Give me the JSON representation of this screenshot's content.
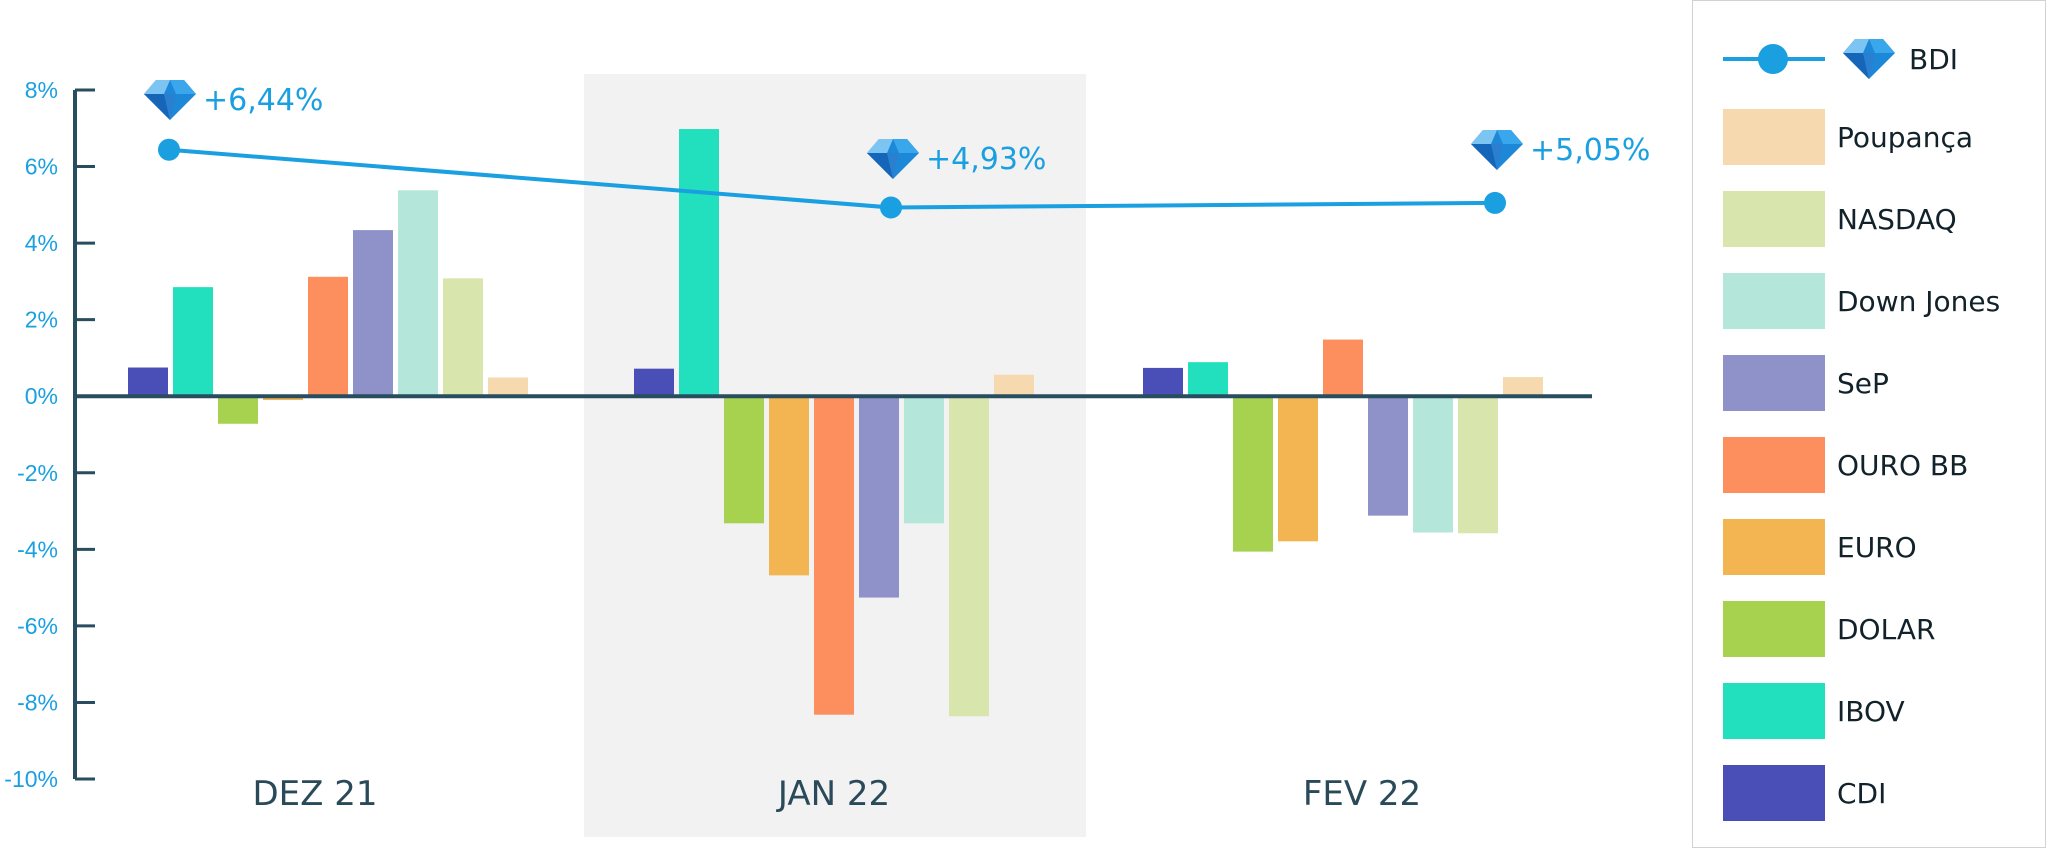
{
  "chart_data": {
    "type": "bar",
    "categories": [
      "DEZ 21",
      "JAN 22",
      "FEV 22"
    ],
    "y_ticks": [
      "8%",
      "6%",
      "4%",
      "2%",
      "0%",
      "-2%",
      "-4%",
      "-6%",
      "-8%",
      "-10%"
    ],
    "ylim": [
      -10,
      8
    ],
    "highlighted_category": "JAN 22",
    "series": [
      {
        "name": "CDI",
        "color": "#4a4fb8",
        "values": [
          0.75,
          0.72,
          0.74
        ]
      },
      {
        "name": "IBOV",
        "color": "#22e0bd",
        "values": [
          2.85,
          6.98,
          0.89
        ]
      },
      {
        "name": "DOLAR",
        "color": "#a6d24f",
        "values": [
          -0.72,
          -3.32,
          -4.06
        ]
      },
      {
        "name": "EURO",
        "color": "#f2b552",
        "values": [
          -0.1,
          -4.68,
          -3.79
        ]
      },
      {
        "name": "OURO BB",
        "color": "#fd8e5d",
        "values": [
          3.12,
          -8.32,
          1.48
        ]
      },
      {
        "name": "SeP",
        "color": "#8e92c9",
        "values": [
          4.34,
          -5.26,
          -3.12
        ]
      },
      {
        "name": "Down Jones",
        "color": "#b4e6da",
        "values": [
          5.38,
          -3.32,
          -3.56
        ]
      },
      {
        "name": "NASDAQ",
        "color": "#d8e6ae",
        "values": [
          3.08,
          -8.36,
          -3.58
        ]
      },
      {
        "name": "Poupança",
        "color": "#f6d9ae",
        "values": [
          0.49,
          0.56,
          0.5
        ]
      }
    ],
    "line": {
      "name": "BDI",
      "color": "#1aa0e0",
      "values": [
        6.44,
        4.93,
        5.05
      ],
      "labels": [
        "+6,44%",
        "+4,93%",
        "+5,05%"
      ]
    },
    "legend": {
      "position": "right",
      "entries": [
        "BDI",
        "Poupança",
        "NASDAQ",
        "Down Jones",
        "SeP",
        "OURO BB",
        "EURO",
        "DOLAR",
        "IBOV",
        "CDI"
      ]
    }
  },
  "colors": {
    "axis": "#274d5f",
    "tick_text": "#1aa0e0",
    "highlight_band": "#f2f2f2",
    "category_text": "#2a4a5a"
  }
}
